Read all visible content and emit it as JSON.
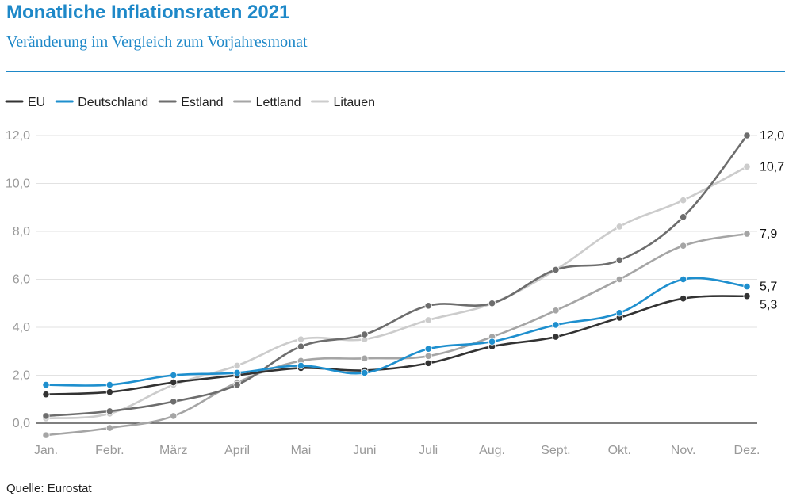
{
  "title": "Monatliche Inflationsraten 2021",
  "subtitle": "Veränderung im Vergleich zum Vorjahresmonat",
  "source": "Quelle: Eurostat",
  "chart_data": {
    "type": "line",
    "title": "Monatliche Inflationsraten 2021",
    "subtitle": "Veränderung im Vergleich zum Vorjahresmonat",
    "xlabel": "",
    "ylabel": "",
    "categories": [
      "Jan.",
      "Febr.",
      "März",
      "April",
      "Mai",
      "Juni",
      "Juli",
      "Aug.",
      "Sept.",
      "Okt.",
      "Nov.",
      "Dez."
    ],
    "yticks": [
      "0,0",
      "2,0",
      "4,0",
      "6,0",
      "8,0",
      "10,0",
      "12,0"
    ],
    "ylim": [
      0,
      12
    ],
    "grid": true,
    "legend_position": "top-left",
    "series": [
      {
        "name": "EU",
        "color": "#333333",
        "values": [
          1.2,
          1.3,
          1.7,
          2.0,
          2.3,
          2.2,
          2.5,
          3.2,
          3.6,
          4.4,
          5.2,
          5.3
        ],
        "end_label": "5,3"
      },
      {
        "name": "Deutschland",
        "color": "#1e8fce",
        "values": [
          1.6,
          1.6,
          2.0,
          2.1,
          2.4,
          2.1,
          3.1,
          3.4,
          4.1,
          4.6,
          6.0,
          5.7
        ],
        "end_label": "5,7"
      },
      {
        "name": "Estland",
        "color": "#6d6d6d",
        "values": [
          0.3,
          0.5,
          0.9,
          1.6,
          3.2,
          3.7,
          4.9,
          5.0,
          6.4,
          6.8,
          8.6,
          12.0
        ],
        "end_label": "12,0"
      },
      {
        "name": "Lettland",
        "color": "#a5a5a5",
        "values": [
          -0.5,
          -0.2,
          0.3,
          1.7,
          2.6,
          2.7,
          2.8,
          3.6,
          4.7,
          6.0,
          7.4,
          7.9
        ],
        "end_label": "7,9"
      },
      {
        "name": "Litauen",
        "color": "#cccccc",
        "values": [
          0.2,
          0.4,
          1.6,
          2.4,
          3.5,
          3.5,
          4.3,
          5.0,
          6.4,
          8.2,
          9.3,
          10.7
        ],
        "end_label": "10,7"
      }
    ]
  }
}
